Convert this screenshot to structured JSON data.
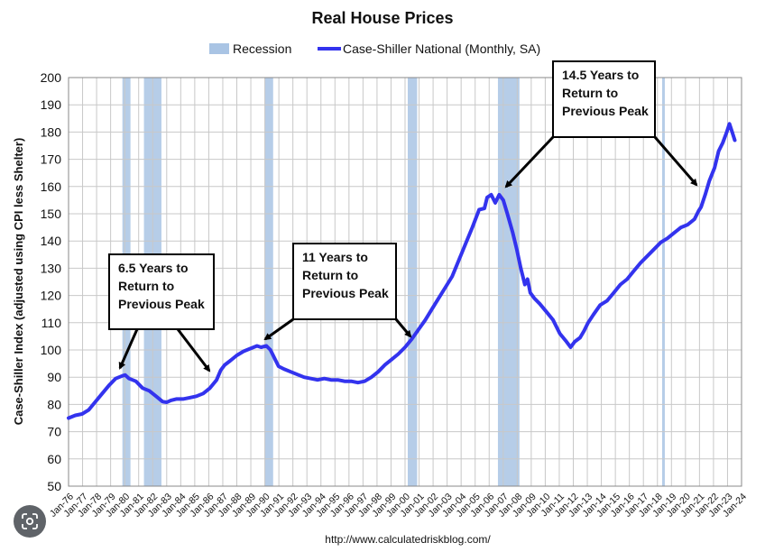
{
  "chart_data": {
    "type": "line",
    "title": "Real House Prices",
    "ylabel": "Case-Shiller Index (adjusted using CPI less Shelter)",
    "xlabel": "",
    "ylim": [
      50,
      200
    ],
    "yticks": [
      50,
      60,
      70,
      80,
      90,
      100,
      110,
      120,
      130,
      140,
      150,
      160,
      170,
      180,
      190,
      200
    ],
    "xlim": [
      1976,
      2024
    ],
    "xticks": [
      "Jan-76",
      "Jan-77",
      "Jan-78",
      "Jan-79",
      "Jan-80",
      "Jan-81",
      "Jan-82",
      "Jan-83",
      "Jan-84",
      "Jan-85",
      "Jan-86",
      "Jan-87",
      "Jan-88",
      "Jan-89",
      "Jan-90",
      "Jan-91",
      "Jan-92",
      "Jan-93",
      "Jan-94",
      "Jan-95",
      "Jan-96",
      "Jan-97",
      "Jan-98",
      "Jan-99",
      "Jan-00",
      "Jan-01",
      "Jan-02",
      "Jan-03",
      "Jan-04",
      "Jan-05",
      "Jan-06",
      "Jan-07",
      "Jan-08",
      "Jan-09",
      "Jan-10",
      "Jan-11",
      "Jan-12",
      "Jan-13",
      "Jan-14",
      "Jan-15",
      "Jan-16",
      "Jan-17",
      "Jan-18",
      "Jan-19",
      "Jan-20",
      "Jan-21",
      "Jan-22",
      "Jan-23",
      "Jan-24"
    ],
    "grid": true,
    "legend": "top-center",
    "legend_entries": [
      "Recession",
      "Case-Shiller National (Monthly, SA)"
    ],
    "series": [
      {
        "name": "Case-Shiller National (Monthly, SA)",
        "color": "#3333ee",
        "points": [
          [
            1976.0,
            75
          ],
          [
            1976.5,
            76
          ],
          [
            1977.0,
            76.5
          ],
          [
            1977.5,
            78
          ],
          [
            1978.0,
            81
          ],
          [
            1978.5,
            84
          ],
          [
            1979.0,
            87
          ],
          [
            1979.5,
            89.5
          ],
          [
            1980.0,
            90.5
          ],
          [
            1980.2,
            90.8
          ],
          [
            1980.5,
            89.5
          ],
          [
            1981.0,
            88.5
          ],
          [
            1981.5,
            86
          ],
          [
            1982.0,
            85
          ],
          [
            1982.5,
            83
          ],
          [
            1983.0,
            81
          ],
          [
            1983.3,
            80.8
          ],
          [
            1983.6,
            81.5
          ],
          [
            1984.0,
            82
          ],
          [
            1984.5,
            82
          ],
          [
            1985.0,
            82.5
          ],
          [
            1985.5,
            83
          ],
          [
            1986.0,
            84
          ],
          [
            1986.5,
            86
          ],
          [
            1987.0,
            89
          ],
          [
            1987.3,
            92.5
          ],
          [
            1987.6,
            94.5
          ],
          [
            1988.0,
            96
          ],
          [
            1988.5,
            98
          ],
          [
            1989.0,
            99.5
          ],
          [
            1989.5,
            100.5
          ],
          [
            1990.0,
            101.5
          ],
          [
            1990.3,
            101
          ],
          [
            1990.7,
            101.5
          ],
          [
            1991.0,
            100
          ],
          [
            1991.3,
            97
          ],
          [
            1991.6,
            94
          ],
          [
            1992.0,
            93
          ],
          [
            1992.5,
            92
          ],
          [
            1993.0,
            91
          ],
          [
            1993.5,
            90
          ],
          [
            1994.0,
            89.5
          ],
          [
            1994.5,
            89
          ],
          [
            1995.0,
            89.5
          ],
          [
            1995.5,
            89
          ],
          [
            1996.0,
            89
          ],
          [
            1996.5,
            88.5
          ],
          [
            1997.0,
            88.5
          ],
          [
            1997.5,
            88
          ],
          [
            1998.0,
            88.5
          ],
          [
            1998.5,
            90
          ],
          [
            1999.0,
            92
          ],
          [
            1999.5,
            94.5
          ],
          [
            2000.0,
            96.5
          ],
          [
            2000.5,
            98.5
          ],
          [
            2001.0,
            101
          ],
          [
            2001.5,
            104
          ],
          [
            2002.0,
            107.5
          ],
          [
            2002.5,
            111
          ],
          [
            2003.0,
            115
          ],
          [
            2003.5,
            119
          ],
          [
            2004.0,
            123
          ],
          [
            2004.5,
            127
          ],
          [
            2005.0,
            133
          ],
          [
            2005.5,
            139
          ],
          [
            2006.0,
            145
          ],
          [
            2006.5,
            151.5
          ],
          [
            2006.9,
            152
          ],
          [
            2007.1,
            156
          ],
          [
            2007.4,
            157
          ],
          [
            2007.7,
            154
          ],
          [
            2008.0,
            157
          ],
          [
            2008.3,
            155
          ],
          [
            2008.6,
            150
          ],
          [
            2009.0,
            143
          ],
          [
            2009.3,
            137
          ],
          [
            2009.6,
            130
          ],
          [
            2009.9,
            124
          ],
          [
            2010.1,
            126
          ],
          [
            2010.3,
            121
          ],
          [
            2010.6,
            119
          ],
          [
            2011.0,
            117
          ],
          [
            2011.5,
            114
          ],
          [
            2012.0,
            111
          ],
          [
            2012.5,
            106
          ],
          [
            2013.0,
            103
          ],
          [
            2013.3,
            101
          ],
          [
            2013.6,
            103
          ],
          [
            2014.0,
            104.5
          ],
          [
            2014.3,
            107
          ],
          [
            2014.6,
            110
          ],
          [
            2015.0,
            113
          ],
          [
            2015.5,
            116.5
          ],
          [
            2016.0,
            118
          ],
          [
            2016.5,
            121
          ],
          [
            2017.0,
            124
          ],
          [
            2017.5,
            126
          ],
          [
            2018.0,
            129
          ],
          [
            2018.5,
            132
          ],
          [
            2019.0,
            134.5
          ],
          [
            2019.5,
            137
          ],
          [
            2020.0,
            139.5
          ],
          [
            2020.5,
            141
          ],
          [
            2021.0,
            143
          ],
          [
            2021.5,
            145
          ],
          [
            2022.0,
            146
          ],
          [
            2022.5,
            148
          ],
          [
            2022.8,
            151
          ],
          [
            2023.0,
            152.5
          ],
          [
            2023.3,
            157
          ],
          [
            2023.6,
            162
          ],
          [
            2024.0,
            167
          ],
          [
            2024.3,
            173
          ],
          [
            2024.6,
            176
          ],
          [
            2024.9,
            180
          ],
          [
            2025.1,
            183
          ],
          [
            2025.3,
            180
          ],
          [
            2025.5,
            177
          ]
        ]
      }
    ],
    "recessions": [
      [
        1980.0,
        1980.6
      ],
      [
        1981.6,
        1982.9
      ],
      [
        1990.6,
        1991.2
      ],
      [
        2001.2,
        2001.9
      ],
      [
        2007.9,
        2009.5
      ],
      [
        2020.1,
        2020.3
      ]
    ],
    "annotations": [
      {
        "lines": [
          "6.5 Years to",
          "Return to",
          "Previous Peak"
        ],
        "from_year": 1980.2,
        "to_year": 1986.5
      },
      {
        "lines": [
          "11 Years to",
          "Return to",
          "Previous Peak"
        ],
        "from_year": 1990.0,
        "to_year": 2001.0
      },
      {
        "lines": [
          "14.5 Years to",
          "Return to",
          "Previous Peak"
        ],
        "from_year": 2007.0,
        "to_year": 2021.5
      }
    ]
  },
  "source_url": "http://www.calculatedriskblog.com/",
  "colors": {
    "line": "#3333ee",
    "recession": "#a9c4e4",
    "grid": "#c8c8c8"
  },
  "lens_icon": "google-lens-icon"
}
